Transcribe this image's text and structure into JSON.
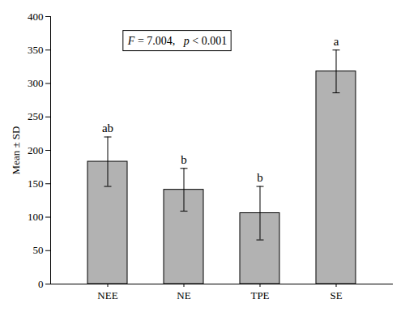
{
  "chart_data": {
    "type": "bar",
    "categories": [
      "NEE",
      "NE",
      "TPE",
      "SE"
    ],
    "values": [
      183,
      141,
      106,
      318
    ],
    "errors": [
      37,
      32,
      40,
      32
    ],
    "significance_labels": [
      "ab",
      "b",
      "b",
      "a"
    ],
    "color": "#b2b2b2",
    "ylabel": "Mean ± SD",
    "ylim": [
      0,
      400
    ],
    "yticks": [
      0,
      50,
      100,
      150,
      200,
      250,
      300,
      350,
      400
    ],
    "annotation": "F = 7.004,   p < 0.001",
    "grid": false
  }
}
